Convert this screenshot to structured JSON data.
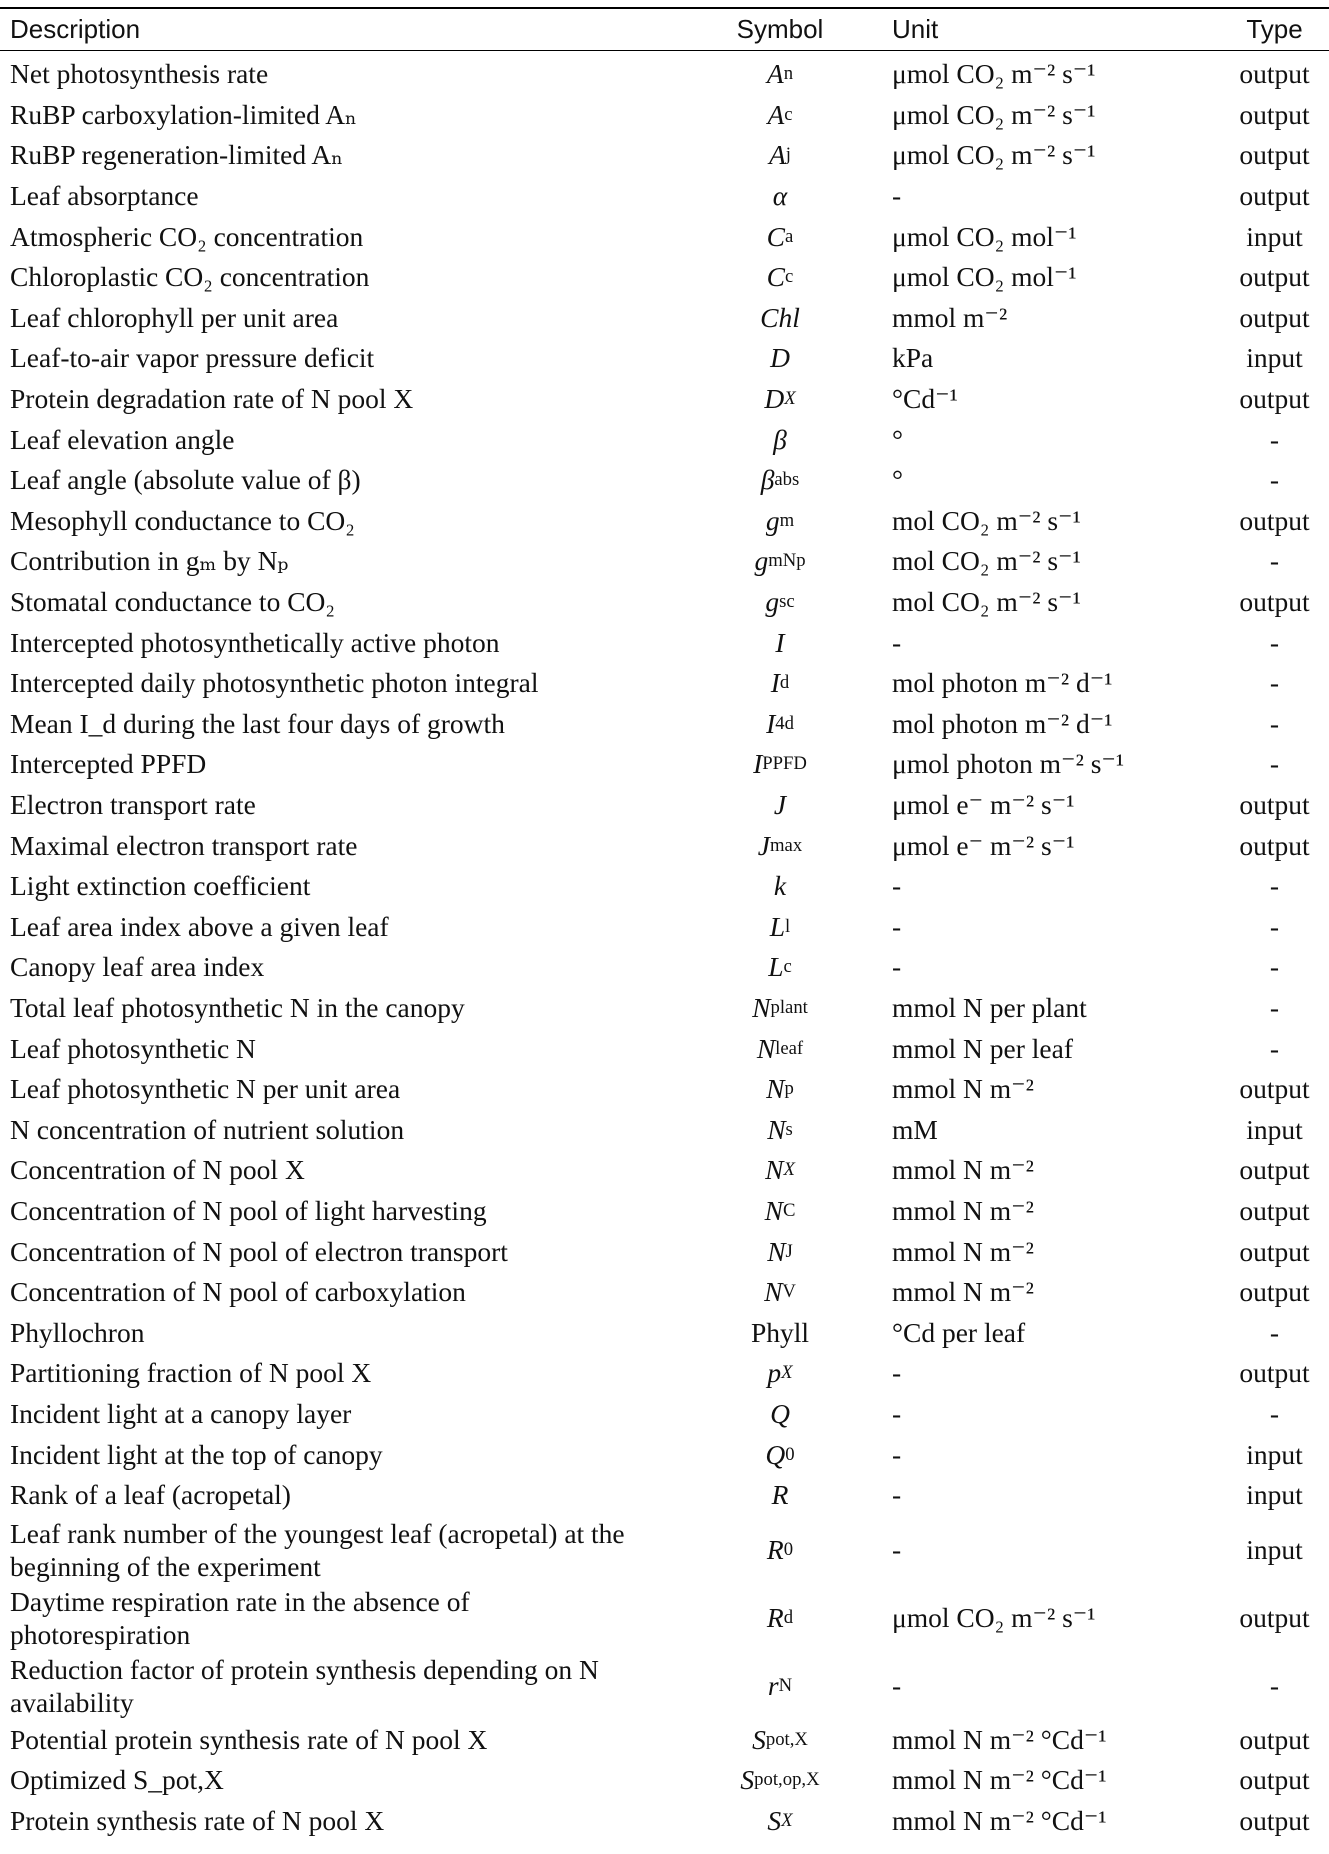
{
  "header": {
    "description": "Description",
    "symbol": "Symbol",
    "unit": "Unit",
    "type": "Type"
  },
  "rows": [
    {
      "description": "Net photosynthesis rate",
      "symbol": "A",
      "symbol_sub": "n",
      "unit": "μmol CO₂ m⁻² s⁻¹",
      "type": "output"
    },
    {
      "description": "RuBP carboxylation-limited Aₙ",
      "symbol": "A",
      "symbol_sub": "c",
      "unit": "μmol CO₂ m⁻² s⁻¹",
      "type": "output"
    },
    {
      "description": "RuBP regeneration-limited Aₙ",
      "symbol": "A",
      "symbol_sub": "j",
      "unit": "μmol CO₂ m⁻² s⁻¹",
      "type": "output"
    },
    {
      "description": "Leaf absorptance",
      "symbol": "α",
      "symbol_sub": "",
      "unit": "-",
      "type": "output"
    },
    {
      "description": "Atmospheric CO₂ concentration",
      "symbol": "C",
      "symbol_sub": "a",
      "unit": "μmol CO₂ mol⁻¹",
      "type": "input"
    },
    {
      "description": "Chloroplastic CO₂ concentration",
      "symbol": "C",
      "symbol_sub": "c",
      "unit": "μmol CO₂ mol⁻¹",
      "type": "output"
    },
    {
      "description": "Leaf chlorophyll per unit area",
      "symbol": "Chl",
      "symbol_sub": "",
      "unit": "mmol m⁻²",
      "type": "output"
    },
    {
      "description": "Leaf-to-air vapor pressure deficit",
      "symbol": "D",
      "symbol_sub": "",
      "unit": "kPa",
      "type": "input"
    },
    {
      "description": "Protein degradation rate of N pool X",
      "symbol": "D",
      "symbol_sub": "X",
      "unit": "°Cd⁻¹",
      "type": "output"
    },
    {
      "description": "Leaf elevation angle",
      "symbol": "β",
      "symbol_sub": "",
      "unit": "°",
      "type": "-"
    },
    {
      "description": "Leaf angle (absolute value of β)",
      "symbol": "β",
      "symbol_sub": "abs",
      "unit": "°",
      "type": "-"
    },
    {
      "description": "Mesophyll conductance to CO₂",
      "symbol": "g",
      "symbol_sub": "m",
      "unit": "mol CO₂ m⁻² s⁻¹",
      "type": "output"
    },
    {
      "description": "Contribution in gₘ by Nₚ",
      "symbol": "g",
      "symbol_sub": "mNp",
      "unit": "mol CO₂ m⁻² s⁻¹",
      "type": "-"
    },
    {
      "description": "Stomatal conductance to CO₂",
      "symbol": "g",
      "symbol_sub": "sc",
      "unit": "mol CO₂ m⁻² s⁻¹",
      "type": "output"
    },
    {
      "description": "Intercepted photosynthetically active photon",
      "symbol": "I",
      "symbol_sub": "",
      "unit": "-",
      "type": "-"
    },
    {
      "description": "Intercepted daily photosynthetic photon integral",
      "symbol": "I",
      "symbol_sub": "d",
      "unit": "mol photon m⁻² d⁻¹",
      "type": "-"
    },
    {
      "description": "Mean I_d during the last four days of growth",
      "symbol": "I",
      "symbol_sub": "4d",
      "unit": "mol photon m⁻² d⁻¹",
      "type": "-"
    },
    {
      "description": "Intercepted PPFD",
      "symbol": "I",
      "symbol_sub": "PPFD",
      "unit": "μmol photon m⁻² s⁻¹",
      "type": "-"
    },
    {
      "description": "Electron transport rate",
      "symbol": "J",
      "symbol_sub": "",
      "unit": "μmol e⁻ m⁻² s⁻¹",
      "type": "output"
    },
    {
      "description": "Maximal electron transport rate",
      "symbol": "J",
      "symbol_sub": "max",
      "unit": "μmol e⁻ m⁻² s⁻¹",
      "type": "output"
    },
    {
      "description": "Light extinction coefficient",
      "symbol": "k",
      "symbol_sub": "",
      "unit": "-",
      "type": "-"
    },
    {
      "description": "Leaf area index above a given leaf",
      "symbol": "L",
      "symbol_sub": "l",
      "unit": "-",
      "type": "-"
    },
    {
      "description": "Canopy leaf area index",
      "symbol": "L",
      "symbol_sub": "c",
      "unit": "-",
      "type": "-"
    },
    {
      "description": "Total leaf photosynthetic N in the canopy",
      "symbol": "N",
      "symbol_sub": "plant",
      "unit": "mmol N per plant",
      "type": "-"
    },
    {
      "description": "Leaf photosynthetic N",
      "symbol": "N",
      "symbol_sub": "leaf",
      "unit": "mmol N per leaf",
      "type": "-"
    },
    {
      "description": "Leaf photosynthetic N per unit area",
      "symbol": "N",
      "symbol_sub": "p",
      "unit": "mmol N m⁻²",
      "type": "output"
    },
    {
      "description": "N concentration of nutrient solution",
      "symbol": "N",
      "symbol_sub": "s",
      "unit": "mM",
      "type": "input"
    },
    {
      "description": "Concentration of N pool X",
      "symbol": "N",
      "symbol_sub": "X",
      "unit": "mmol N m⁻²",
      "type": "output"
    },
    {
      "description": "Concentration of N pool of light harvesting",
      "symbol": "N",
      "symbol_sub": "C",
      "unit": "mmol N m⁻²",
      "type": "output"
    },
    {
      "description": "Concentration of N pool of electron transport",
      "symbol": "N",
      "symbol_sub": "J",
      "unit": "mmol N m⁻²",
      "type": "output"
    },
    {
      "description": "Concentration of N pool of carboxylation",
      "symbol": "N",
      "symbol_sub": "V",
      "unit": "mmol N m⁻²",
      "type": "output"
    },
    {
      "description": "Phyllochron",
      "symbol": "Phyll",
      "symbol_sub": "",
      "unit": "°Cd per leaf",
      "type": "-"
    },
    {
      "description": "Partitioning fraction of N pool X",
      "symbol": "p",
      "symbol_sub": "X",
      "unit": "-",
      "type": "output"
    },
    {
      "description": "Incident light at a canopy layer",
      "symbol": "Q",
      "symbol_sub": "",
      "unit": "-",
      "type": "-"
    },
    {
      "description": "Incident light at the top of canopy",
      "symbol": "Q",
      "symbol_sub": "0",
      "unit": "-",
      "type": "input"
    },
    {
      "description": "Rank of a leaf (acropetal)",
      "symbol": "R",
      "symbol_sub": "",
      "unit": "-",
      "type": "input"
    },
    {
      "description": "Leaf rank number of the youngest leaf (acropetal) at the beginning of the experiment",
      "symbol": "R",
      "symbol_sub": "0",
      "unit": "-",
      "type": "input"
    },
    {
      "description": "Daytime respiration rate in the absence of photorespiration",
      "symbol": "R",
      "symbol_sub": "d",
      "unit": "μmol CO₂ m⁻² s⁻¹",
      "type": "output"
    },
    {
      "description": "Reduction factor of protein synthesis depending on N availability",
      "symbol": "r",
      "symbol_sub": "N",
      "unit": "-",
      "type": "-"
    },
    {
      "description": "Potential protein synthesis rate of N pool X",
      "symbol": "S",
      "symbol_sub": "pot,X",
      "unit": "mmol N m⁻² °Cd⁻¹",
      "type": "output"
    },
    {
      "description": "Optimized S_pot,X",
      "symbol": "S",
      "symbol_sub": "pot,op,X",
      "unit": "mmol N m⁻² °Cd⁻¹",
      "type": "output"
    },
    {
      "description": "Protein synthesis rate of N pool X",
      "symbol": "S",
      "symbol_sub": "X",
      "unit": "mmol N m⁻² °Cd⁻¹",
      "type": "output"
    }
  ]
}
